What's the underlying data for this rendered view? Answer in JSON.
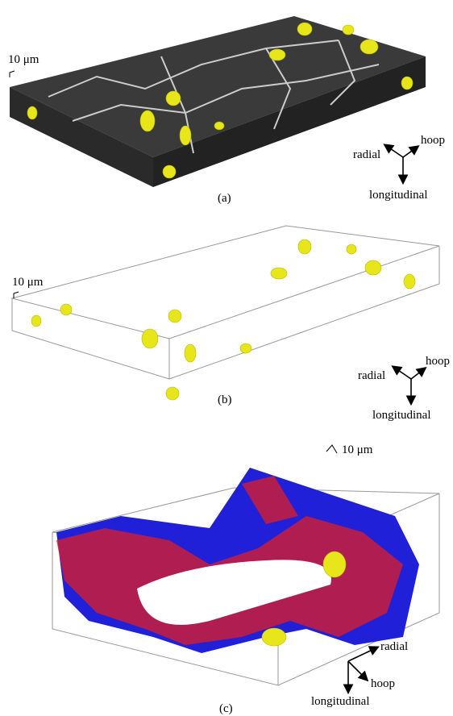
{
  "panels": [
    {
      "label": "(a)",
      "scale": "10 μm",
      "axes": {
        "radial": "radial",
        "hoop": "hoop",
        "longitudinal": "longitudinal"
      }
    },
    {
      "label": "(b)",
      "scale": "10 μm",
      "axes": {
        "radial": "radial",
        "hoop": "hoop",
        "longitudinal": "longitudinal"
      }
    },
    {
      "label": "(c)",
      "scale": "10 μm",
      "axes": {
        "radial": "radial",
        "hoop": "hoop",
        "longitudinal": "longitudinal"
      }
    }
  ]
}
